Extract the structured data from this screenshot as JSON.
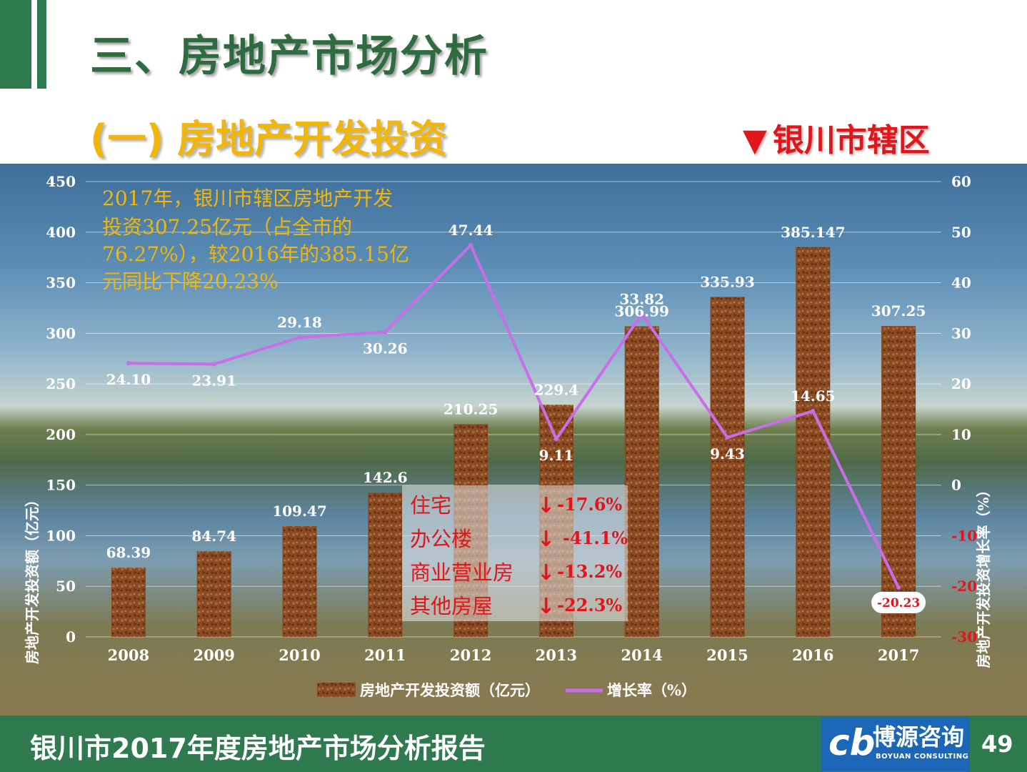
{
  "header": {
    "title": "三、房地产市场分析",
    "subtitle": "(一) 房地产开发投资",
    "region_marker": "▼",
    "region": "银川市辖区"
  },
  "annotation": {
    "lines": [
      "2017年，银川市辖区房地产开发",
      "投资307.25亿元（占全市的",
      "76.27%），较2016年的385.15亿",
      "元同比下降20.23%"
    ]
  },
  "breakdown": {
    "items": [
      {
        "label": "住宅",
        "value": "-17.6%"
      },
      {
        "label": "办公楼",
        "value": "-41.1%"
      },
      {
        "label": "商业营业房",
        "value": "-13.2%"
      },
      {
        "label": "其他房屋",
        "value": "-22.3%"
      }
    ]
  },
  "chart_data": {
    "type": "bar",
    "categories": [
      "2008",
      "2009",
      "2010",
      "2011",
      "2012",
      "2013",
      "2014",
      "2015",
      "2016",
      "2017"
    ],
    "series": [
      {
        "name": "房地产开发投资额（亿元）",
        "type": "bar",
        "axis": "left",
        "values": [
          68.39,
          84.74,
          109.47,
          142.6,
          210.25,
          229.4,
          306.99,
          335.93,
          385.147,
          307.25
        ],
        "labels": [
          "68.39",
          "84.74",
          "109.47",
          "142.6",
          "210.25",
          "229.4",
          "306.99",
          "335.93",
          "385.147",
          "307.25"
        ],
        "color": "#8a4a22"
      },
      {
        "name": "增长率（%）",
        "type": "line",
        "axis": "right",
        "values": [
          24.1,
          23.91,
          29.18,
          30.26,
          47.44,
          9.11,
          33.82,
          9.43,
          14.65,
          -20.23
        ],
        "labels": [
          "24.10",
          "23.91",
          "29.18",
          "30.26",
          "47.44",
          "9.11",
          "33.82",
          "9.43",
          "14.65",
          "-20.23"
        ],
        "color": "#c86ee8"
      }
    ],
    "ylabel": "房地产开发投资额（亿元）",
    "y2label": "房地产开发投资增长率（%）",
    "ylim": [
      0,
      450
    ],
    "yticks": [
      "0",
      "50",
      "100",
      "150",
      "200",
      "250",
      "300",
      "350",
      "400",
      "450"
    ],
    "y2lim": [
      -30,
      60
    ],
    "y2ticks": [
      "-30",
      "-20",
      "-10",
      "0",
      "10",
      "20",
      "30",
      "40",
      "50",
      "60"
    ],
    "grid": true,
    "legend": "bottom"
  },
  "footer": {
    "title": "银川市2017年度房地产市场分析报告",
    "logo_mark": "cb",
    "logo_cn": "博源咨询",
    "logo_en": "BOYUAN CONSULTING",
    "page_number": "49"
  },
  "colors": {
    "brand_green": "#2f7a4f",
    "title_green": "#2e6b3f",
    "subtitle_gold": "#f2b60a",
    "accent_red": "#e0161b",
    "bar_brown": "#8a4a22",
    "line_purple": "#c86ee8",
    "logo_blue": "#1c66b8"
  }
}
